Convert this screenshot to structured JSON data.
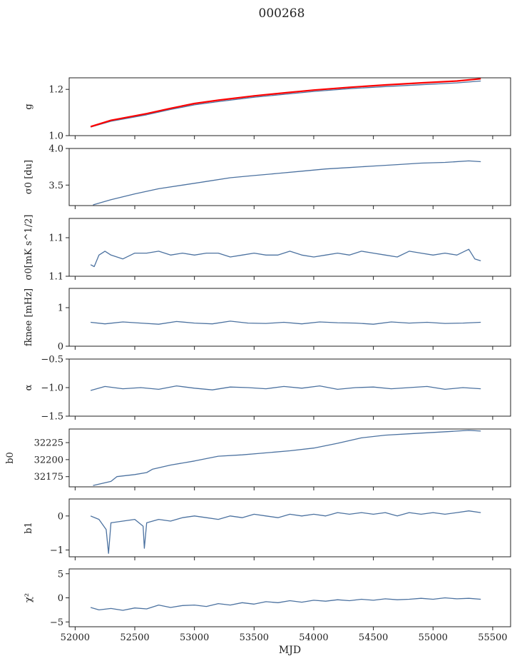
{
  "figure": {
    "title": "000268"
  },
  "chart_data": [
    {
      "id": "g",
      "type": "line",
      "ylabel": "g",
      "ylim": [
        1.0,
        1.25
      ],
      "yticks": [
        1.0,
        1.2
      ],
      "series": [
        {
          "color": "#4c72a0",
          "x": [
            52130,
            52300,
            52600,
            52800,
            53000,
            53200,
            53500,
            53800,
            54000,
            54300,
            54600,
            54900,
            55200,
            55400
          ],
          "y": [
            1.037,
            1.062,
            1.09,
            1.113,
            1.133,
            1.147,
            1.166,
            1.181,
            1.191,
            1.203,
            1.212,
            1.22,
            1.228,
            1.236
          ]
        },
        {
          "color": "#ff0000",
          "x": [
            52130,
            52300,
            52600,
            52800,
            53000,
            53200,
            53500,
            53800,
            54000,
            54300,
            54600,
            54900,
            55200,
            55400
          ],
          "y": [
            1.039,
            1.066,
            1.095,
            1.118,
            1.139,
            1.153,
            1.172,
            1.187,
            1.197,
            1.209,
            1.219,
            1.228,
            1.236,
            1.246
          ]
        }
      ]
    },
    {
      "id": "sigma_du",
      "type": "line",
      "ylabel": "σ0 [du]",
      "ylim": [
        3.22,
        4.0
      ],
      "yticks": [
        3.5,
        4.0
      ],
      "series": [
        {
          "color": "#4c72a0",
          "x": [
            52150,
            52300,
            52500,
            52700,
            52900,
            53100,
            53300,
            53500,
            53700,
            53900,
            54100,
            54300,
            54500,
            54700,
            54900,
            55100,
            55300,
            55400
          ],
          "y": [
            3.23,
            3.3,
            3.38,
            3.45,
            3.5,
            3.55,
            3.6,
            3.63,
            3.66,
            3.69,
            3.72,
            3.74,
            3.76,
            3.78,
            3.8,
            3.81,
            3.83,
            3.82
          ]
        }
      ]
    },
    {
      "id": "sigma_mk",
      "type": "line",
      "ylabel": "σ0[mK s^1/2]",
      "ylim": [
        1.1,
        1.13
      ],
      "yticks": [
        1.1,
        1.12
      ],
      "series": [
        {
          "color": "#4c72a0",
          "x": [
            52130,
            52160,
            52200,
            52250,
            52300,
            52400,
            52500,
            52600,
            52700,
            52800,
            52900,
            53000,
            53100,
            53200,
            53300,
            53400,
            53500,
            53600,
            53700,
            53800,
            53900,
            54000,
            54100,
            54200,
            54300,
            54400,
            54500,
            54600,
            54700,
            54800,
            54900,
            55000,
            55100,
            55200,
            55300,
            55350,
            55400
          ],
          "y": [
            1.106,
            1.105,
            1.111,
            1.113,
            1.111,
            1.109,
            1.112,
            1.112,
            1.113,
            1.111,
            1.112,
            1.111,
            1.112,
            1.112,
            1.11,
            1.111,
            1.112,
            1.111,
            1.111,
            1.113,
            1.111,
            1.11,
            1.111,
            1.112,
            1.111,
            1.113,
            1.112,
            1.111,
            1.11,
            1.113,
            1.112,
            1.111,
            1.112,
            1.111,
            1.114,
            1.109,
            1.108
          ]
        }
      ]
    },
    {
      "id": "fknee",
      "type": "line",
      "ylabel": "fknee [mHz]",
      "ylim": [
        0,
        1.5
      ],
      "yticks": [
        0,
        1
      ],
      "series": [
        {
          "color": "#4c72a0",
          "x": [
            52130,
            52250,
            52400,
            52550,
            52700,
            52850,
            53000,
            53150,
            53300,
            53450,
            53600,
            53750,
            53900,
            54050,
            54200,
            54350,
            54500,
            54650,
            54800,
            54950,
            55100,
            55250,
            55400
          ],
          "y": [
            0.62,
            0.58,
            0.63,
            0.6,
            0.57,
            0.64,
            0.6,
            0.58,
            0.65,
            0.6,
            0.59,
            0.62,
            0.58,
            0.63,
            0.61,
            0.6,
            0.57,
            0.63,
            0.6,
            0.62,
            0.59,
            0.6,
            0.62
          ]
        }
      ]
    },
    {
      "id": "alpha",
      "type": "line",
      "ylabel": "α",
      "ylim": [
        -1.5,
        -0.5
      ],
      "yticks": [
        -1.5,
        -1.0,
        -0.5
      ],
      "series": [
        {
          "color": "#4c72a0",
          "x": [
            52130,
            52250,
            52400,
            52550,
            52700,
            52850,
            53000,
            53150,
            53300,
            53450,
            53600,
            53750,
            53900,
            54050,
            54200,
            54350,
            54500,
            54650,
            54800,
            54950,
            55100,
            55250,
            55400
          ],
          "y": [
            -1.05,
            -0.98,
            -1.02,
            -1.0,
            -1.03,
            -0.97,
            -1.01,
            -1.04,
            -0.99,
            -1.0,
            -1.02,
            -0.98,
            -1.01,
            -0.97,
            -1.03,
            -1.0,
            -0.99,
            -1.02,
            -1.0,
            -0.98,
            -1.03,
            -1.0,
            -1.02
          ]
        }
      ]
    },
    {
      "id": "b0",
      "type": "line",
      "ylabel": "b0",
      "ylim": [
        32160,
        32245
      ],
      "yticks": [
        32175,
        32200,
        32225
      ],
      "series": [
        {
          "color": "#4c72a0",
          "x": [
            52150,
            52300,
            52350,
            52500,
            52600,
            52650,
            52800,
            53000,
            53200,
            53400,
            53600,
            53800,
            54000,
            54200,
            54400,
            54600,
            54800,
            55000,
            55200,
            55300,
            55400
          ],
          "y": [
            32162,
            32168,
            32175,
            32178,
            32181,
            32186,
            32192,
            32198,
            32205,
            32207,
            32210,
            32213,
            32217,
            32224,
            32232,
            32236,
            32238,
            32240,
            32242,
            32243,
            32242
          ]
        }
      ]
    },
    {
      "id": "b1",
      "type": "line",
      "ylabel": "b1",
      "ylim": [
        -1.2,
        0.5
      ],
      "yticks": [
        -1,
        0
      ],
      "series": [
        {
          "color": "#4c72a0",
          "x": [
            52130,
            52200,
            52260,
            52280,
            52300,
            52400,
            52500,
            52570,
            52580,
            52600,
            52700,
            52800,
            52900,
            53000,
            53100,
            53200,
            53300,
            53400,
            53500,
            53600,
            53700,
            53800,
            53900,
            54000,
            54100,
            54200,
            54300,
            54400,
            54500,
            54600,
            54700,
            54800,
            54900,
            55000,
            55100,
            55200,
            55300,
            55400
          ],
          "y": [
            0.0,
            -0.1,
            -0.4,
            -1.1,
            -0.2,
            -0.15,
            -0.1,
            -0.3,
            -0.95,
            -0.2,
            -0.1,
            -0.15,
            -0.05,
            0.0,
            -0.05,
            -0.1,
            0.0,
            -0.05,
            0.05,
            0.0,
            -0.05,
            0.05,
            0.0,
            0.05,
            0.0,
            0.1,
            0.05,
            0.1,
            0.05,
            0.1,
            0.0,
            0.1,
            0.05,
            0.1,
            0.05,
            0.1,
            0.15,
            0.1
          ]
        }
      ]
    },
    {
      "id": "chi2",
      "type": "line",
      "ylabel": "χ²",
      "xlabel": "MJD",
      "ylim": [
        -6,
        6
      ],
      "yticks": [
        -5,
        0,
        5
      ],
      "xlim": [
        51950,
        55650
      ],
      "xticks": [
        52000,
        52500,
        53000,
        53500,
        54000,
        54500,
        55000,
        55500
      ],
      "series": [
        {
          "color": "#4c72a0",
          "x": [
            52130,
            52200,
            52300,
            52400,
            52500,
            52600,
            52700,
            52800,
            52900,
            53000,
            53100,
            53200,
            53300,
            53400,
            53500,
            53600,
            53700,
            53800,
            53900,
            54000,
            54100,
            54200,
            54300,
            54400,
            54500,
            54600,
            54700,
            54800,
            54900,
            55000,
            55100,
            55200,
            55300,
            55400
          ],
          "y": [
            -2.0,
            -2.5,
            -2.2,
            -2.6,
            -2.1,
            -2.3,
            -1.5,
            -2.0,
            -1.6,
            -1.5,
            -1.8,
            -1.2,
            -1.5,
            -1.0,
            -1.3,
            -0.8,
            -1.0,
            -0.6,
            -0.9,
            -0.5,
            -0.7,
            -0.4,
            -0.6,
            -0.3,
            -0.5,
            -0.2,
            -0.4,
            -0.3,
            -0.1,
            -0.3,
            0.0,
            -0.2,
            -0.1,
            -0.3
          ]
        }
      ]
    }
  ]
}
